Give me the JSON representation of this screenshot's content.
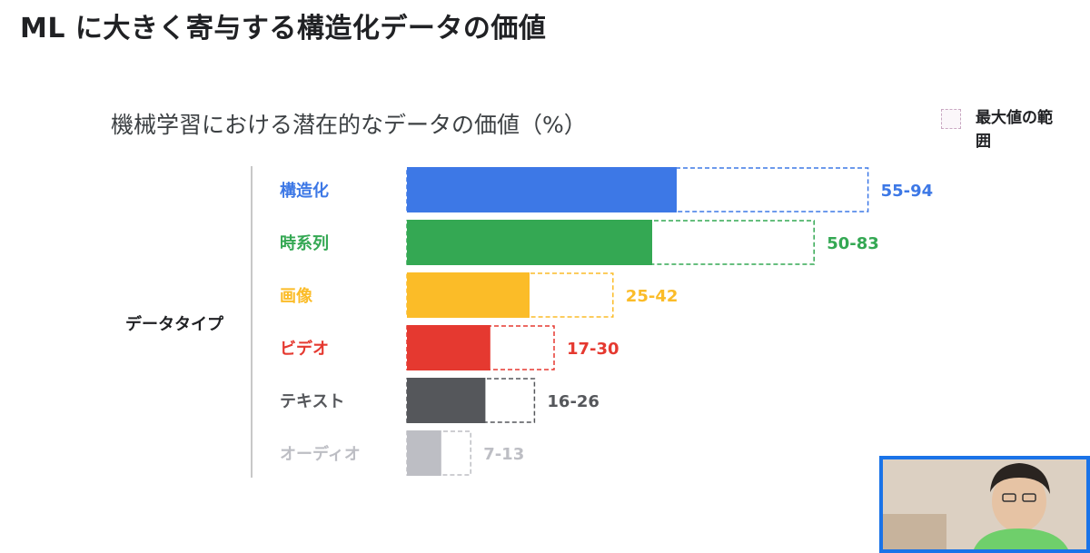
{
  "slide": {
    "title": "ML に大きく寄与する構造化データの価値"
  },
  "legend": {
    "label": "最大値の範囲",
    "swatch_color": "#c9a8c2"
  },
  "colors": {
    "structured": "#3d78e6",
    "timeseries": "#34a853",
    "image": "#fbbc28",
    "video": "#e53930",
    "text": "#55575b",
    "audio": "#bdbec4"
  },
  "chart_data": {
    "type": "bar",
    "orientation": "horizontal",
    "title": "機械学習における潜在的なデータの価値（%）",
    "ylabel": "データタイプ",
    "xlabel": "",
    "xlim": [
      0,
      100
    ],
    "grid": false,
    "legend_position": "top-right",
    "categories": [
      "構造化",
      "時系列",
      "画像",
      "ビデオ",
      "テキスト",
      "オーディオ"
    ],
    "series": [
      {
        "name": "",
        "values": [
          55,
          50,
          25,
          17,
          16,
          7
        ]
      },
      {
        "name": "最大値の範囲",
        "values": [
          94,
          83,
          42,
          30,
          26,
          13
        ]
      }
    ],
    "range_labels": [
      "55-94",
      "50-83",
      "25-42",
      "17-30",
      "16-26",
      "7-13"
    ],
    "category_colors": [
      "#3d78e6",
      "#34a853",
      "#fbbc28",
      "#e53930",
      "#55575b",
      "#bdbec4"
    ]
  }
}
